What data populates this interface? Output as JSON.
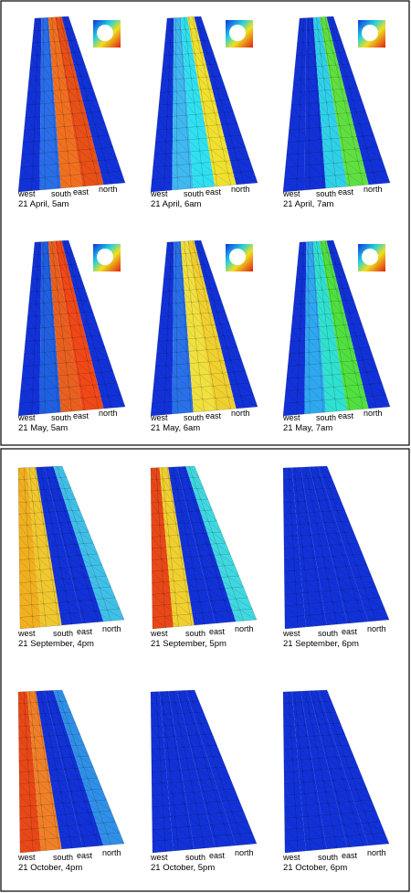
{
  "figure": {
    "panels": [
      {
        "caption": "21 April, 5am",
        "labels": [
          "west",
          "south",
          "east",
          "north"
        ]
      },
      {
        "caption": "21 April, 6am",
        "labels": [
          "west",
          "south",
          "east",
          "north"
        ]
      },
      {
        "caption": "21 April, 7am",
        "labels": [
          "west",
          "south",
          "east",
          "north"
        ]
      },
      {
        "caption": "21 May, 5am",
        "labels": [
          "west",
          "south",
          "east",
          "north"
        ]
      },
      {
        "caption": "21 May, 6am",
        "labels": [
          "west",
          "south",
          "east",
          "north"
        ]
      },
      {
        "caption": "21 May, 7am",
        "labels": [
          "west",
          "south",
          "east",
          "north"
        ]
      },
      {
        "caption": "21 September, 4pm",
        "labels": [
          "west",
          "south",
          "east",
          "north"
        ]
      },
      {
        "caption": "21 September, 5pm",
        "labels": [
          "west",
          "south",
          "east",
          "north"
        ]
      },
      {
        "caption": "21 September, 6pm",
        "labels": [
          "west",
          "south",
          "east",
          "north"
        ]
      },
      {
        "caption": "21 October, 4pm",
        "labels": [
          "west",
          "south",
          "east",
          "north"
        ]
      },
      {
        "caption": "21 October, 5pm",
        "labels": [
          "west",
          "south",
          "east",
          "north"
        ]
      },
      {
        "caption": "21 October, 6pm",
        "labels": [
          "west",
          "south",
          "east",
          "north"
        ]
      }
    ]
  }
}
